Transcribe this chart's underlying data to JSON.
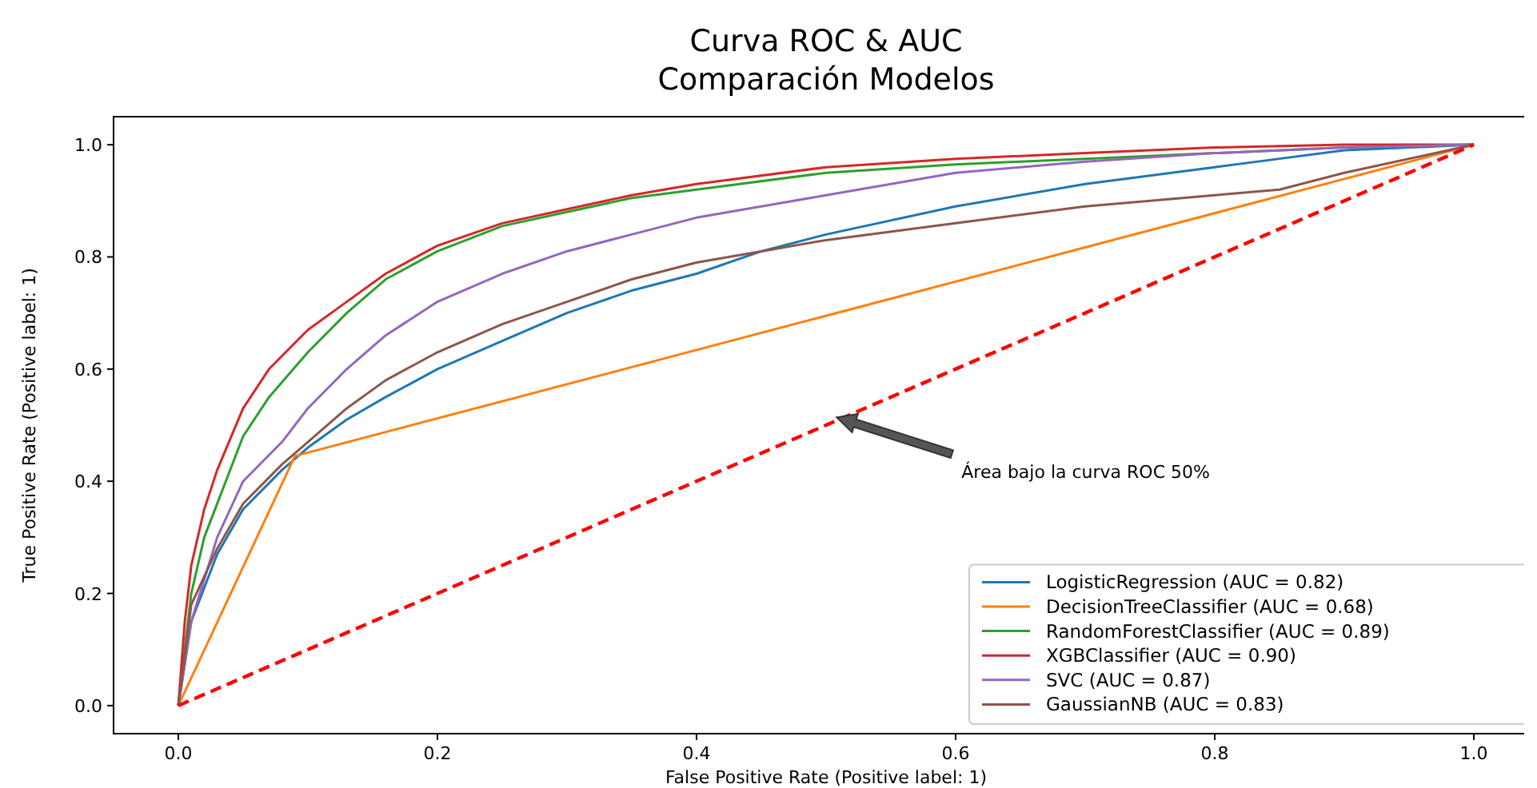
{
  "chart_data": {
    "type": "line",
    "title": "Curva ROC & AUC\nComparación Modelos",
    "xlabel": "False Positive Rate (Positive label: 1)",
    "ylabel": "True Positive Rate (Positive label: 1)",
    "xlim": [
      -0.05,
      1.05
    ],
    "ylim": [
      -0.05,
      1.05
    ],
    "xticks": [
      {
        "value": 0,
        "label": "0.0"
      },
      {
        "value": 0.2,
        "label": "0.2"
      },
      {
        "value": 0.4,
        "label": "0.4"
      },
      {
        "value": 0.6,
        "label": "0.6"
      },
      {
        "value": 0.8,
        "label": "0.8"
      },
      {
        "value": 1,
        "label": "1.0"
      }
    ],
    "yticks": [
      {
        "value": 0,
        "label": "0.0"
      },
      {
        "value": 0.2,
        "label": "0.2"
      },
      {
        "value": 0.4,
        "label": "0.4"
      },
      {
        "value": 0.6,
        "label": "0.6"
      },
      {
        "value": 0.8,
        "label": "0.8"
      },
      {
        "value": 1,
        "label": "1.0"
      }
    ],
    "grid": false,
    "legend": "bottom right",
    "marker": "none",
    "line_style": "solid",
    "series": [
      {
        "name": "LogisticRegression (AUC = 0.82)",
        "color": "#1f77b4",
        "x": [
          0,
          0.01,
          0.03,
          0.05,
          0.08,
          0.1,
          0.13,
          0.16,
          0.2,
          0.25,
          0.3,
          0.35,
          0.4,
          0.45,
          0.5,
          0.6,
          0.7,
          0.8,
          0.85,
          0.9,
          1
        ],
        "values": [
          0,
          0.15,
          0.27,
          0.35,
          0.42,
          0.46,
          0.51,
          0.55,
          0.6,
          0.65,
          0.7,
          0.74,
          0.77,
          0.81,
          0.84,
          0.89,
          0.93,
          0.96,
          0.975,
          0.99,
          1
        ]
      },
      {
        "name": "DecisionTreeClassifier (AUC = 0.68)",
        "color": "#ff7f0e",
        "x": [
          0,
          0.09,
          1
        ],
        "values": [
          0,
          0.445,
          1
        ]
      },
      {
        "name": "RandomForestClassifier (AUC = 0.89)",
        "color": "#2ca02c",
        "x": [
          0,
          0.01,
          0.02,
          0.05,
          0.07,
          0.1,
          0.13,
          0.16,
          0.2,
          0.25,
          0.3,
          0.35,
          0.4,
          0.5,
          0.6,
          0.7,
          0.8,
          0.9,
          1
        ],
        "values": [
          0,
          0.2,
          0.3,
          0.48,
          0.55,
          0.63,
          0.7,
          0.76,
          0.81,
          0.855,
          0.88,
          0.905,
          0.92,
          0.95,
          0.965,
          0.975,
          0.985,
          0.995,
          1
        ]
      },
      {
        "name": "XGBClassifier (AUC = 0.90)",
        "color": "#d62728",
        "x": [
          0,
          0.005,
          0.01,
          0.02,
          0.03,
          0.05,
          0.07,
          0.1,
          0.13,
          0.16,
          0.2,
          0.25,
          0.3,
          0.35,
          0.4,
          0.5,
          0.6,
          0.7,
          0.8,
          0.9,
          1
        ],
        "values": [
          0,
          0.15,
          0.25,
          0.35,
          0.42,
          0.53,
          0.6,
          0.67,
          0.72,
          0.77,
          0.82,
          0.86,
          0.885,
          0.91,
          0.93,
          0.96,
          0.975,
          0.985,
          0.995,
          1,
          1
        ]
      },
      {
        "name": "SVC (AUC = 0.87)",
        "color": "#9467bd",
        "x": [
          0,
          0.01,
          0.03,
          0.05,
          0.08,
          0.1,
          0.13,
          0.16,
          0.2,
          0.25,
          0.3,
          0.35,
          0.4,
          0.5,
          0.6,
          0.7,
          0.8,
          0.9,
          1
        ],
        "values": [
          0,
          0.15,
          0.3,
          0.4,
          0.47,
          0.53,
          0.6,
          0.66,
          0.72,
          0.77,
          0.81,
          0.84,
          0.87,
          0.91,
          0.95,
          0.97,
          0.985,
          0.995,
          1
        ]
      },
      {
        "name": "GaussianNB (AUC = 0.83)",
        "color": "#8c564b",
        "x": [
          0,
          0.01,
          0.03,
          0.05,
          0.08,
          0.1,
          0.13,
          0.16,
          0.2,
          0.25,
          0.3,
          0.35,
          0.4,
          0.45,
          0.5,
          0.6,
          0.7,
          0.8,
          0.85,
          0.9,
          1
        ],
        "values": [
          0,
          0.18,
          0.28,
          0.36,
          0.43,
          0.47,
          0.53,
          0.58,
          0.63,
          0.68,
          0.72,
          0.76,
          0.79,
          0.81,
          0.83,
          0.86,
          0.89,
          0.91,
          0.92,
          0.95,
          1
        ]
      },
      {
        "color": "#ff0000",
        "line_style": "dashed",
        "x": [
          0,
          1
        ],
        "values": [
          0,
          1
        ]
      }
    ],
    "annotations": [
      "Área bajo la curva ROC 50%"
    ]
  }
}
